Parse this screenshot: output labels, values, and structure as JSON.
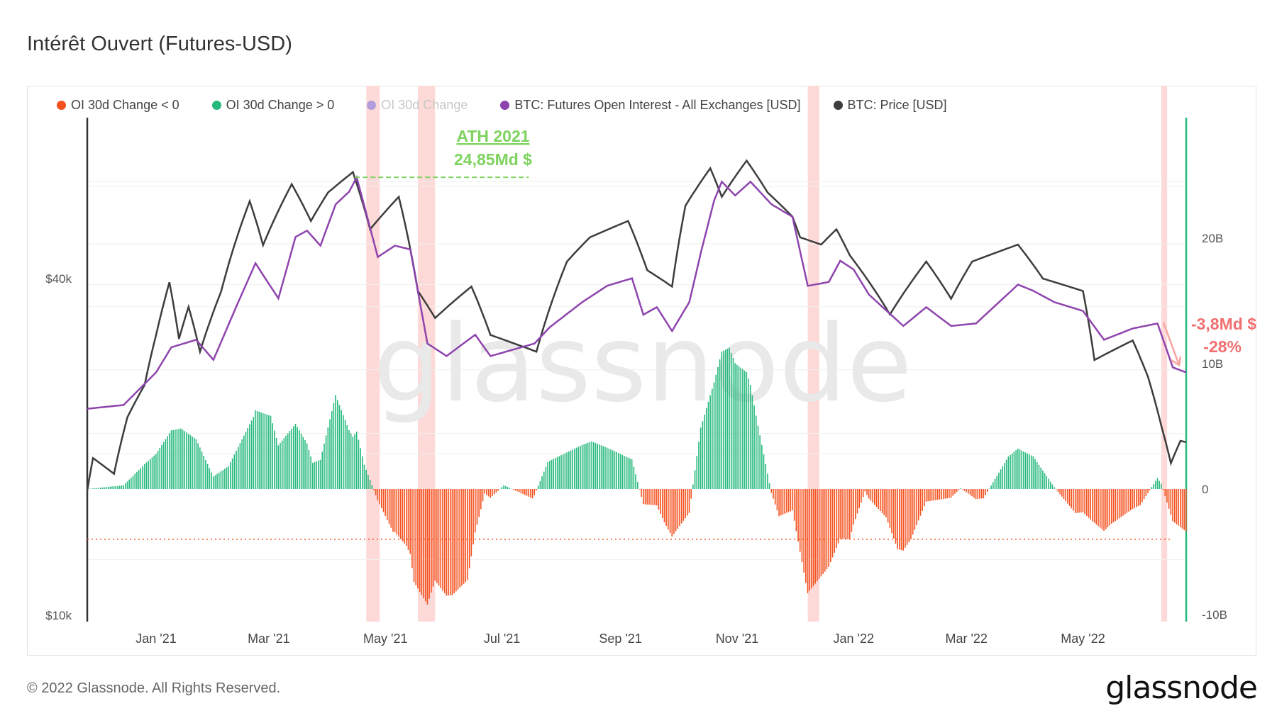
{
  "title": "Intérêt Ouvert (Futures-USD)",
  "footer": "© 2022 Glassnode. All Rights Reserved.",
  "logo": "glassnode",
  "watermark": "glassnode",
  "chart_data": {
    "type": "line",
    "title": "Intérêt Ouvert (Futures-USD)",
    "legend": [
      {
        "name": "OI 30d Change < 0",
        "color": "#f4511e",
        "muted": false
      },
      {
        "name": "OI 30d Change > 0",
        "color": "#26b97d",
        "muted": false
      },
      {
        "name": "OI 30d Change",
        "color": "#b39ddb",
        "muted": true
      },
      {
        "name": "BTC: Futures Open Interest - All Exchanges [USD]",
        "color": "#8e44ad",
        "muted": false
      },
      {
        "name": "BTC: Price [USD]",
        "color": "#3d3d3d",
        "muted": false
      }
    ],
    "legend_position": "top-left",
    "x_range": [
      "2020-11-26",
      "2022-06-24"
    ],
    "x_ticks": [
      {
        "date": "2021-01-01",
        "label": "Jan '21"
      },
      {
        "date": "2021-03-01",
        "label": "Mar '21"
      },
      {
        "date": "2021-05-01",
        "label": "May '21"
      },
      {
        "date": "2021-07-01",
        "label": "Jul '21"
      },
      {
        "date": "2021-09-01",
        "label": "Sep '21"
      },
      {
        "date": "2021-11-01",
        "label": "Nov '21"
      },
      {
        "date": "2022-01-01",
        "label": "Jan '22"
      },
      {
        "date": "2022-03-01",
        "label": "Mar '22"
      },
      {
        "date": "2022-05-01",
        "label": "May '22"
      }
    ],
    "left_axis": {
      "scale": "log",
      "ticks": [
        {
          "value": 40000,
          "label": "$40k"
        },
        {
          "value": 10000,
          "label": "$10k"
        }
      ]
    },
    "right_axis": {
      "scale": "linear",
      "range": [
        -10,
        30
      ],
      "unit": "B",
      "ticks": [
        {
          "value": 20,
          "label": "20B"
        },
        {
          "value": 10,
          "label": "10B"
        },
        {
          "value": 0,
          "label": "0"
        },
        {
          "value": -10,
          "label": "-10B"
        }
      ]
    },
    "price_usd": [
      [
        "2020-11-26",
        16700
      ],
      [
        "2020-11-29",
        19100
      ],
      [
        "2020-12-10",
        17900
      ],
      [
        "2020-12-17",
        22600
      ],
      [
        "2020-12-26",
        25800
      ],
      [
        "2021-01-01",
        31700
      ],
      [
        "2021-01-08",
        39400
      ],
      [
        "2021-01-13",
        31200
      ],
      [
        "2021-01-18",
        35600
      ],
      [
        "2021-01-24",
        29600
      ],
      [
        "2021-02-04",
        37900
      ],
      [
        "2021-02-19",
        55000
      ],
      [
        "2021-02-26",
        45900
      ],
      [
        "2021-03-13",
        59000
      ],
      [
        "2021-03-23",
        50700
      ],
      [
        "2021-04-01",
        57000
      ],
      [
        "2021-04-14",
        62000
      ],
      [
        "2021-04-23",
        49000
      ],
      [
        "2021-05-08",
        56000
      ],
      [
        "2021-05-18",
        38000
      ],
      [
        "2021-05-27",
        34000
      ],
      [
        "2021-06-15",
        38700
      ],
      [
        "2021-06-25",
        31700
      ],
      [
        "2021-07-19",
        29600
      ],
      [
        "2021-08-04",
        42900
      ],
      [
        "2021-08-16",
        47400
      ],
      [
        "2021-09-05",
        50700
      ],
      [
        "2021-09-15",
        41400
      ],
      [
        "2021-09-28",
        38700
      ],
      [
        "2021-10-05",
        54000
      ],
      [
        "2021-10-18",
        63000
      ],
      [
        "2021-10-24",
        56000
      ],
      [
        "2021-11-06",
        65000
      ],
      [
        "2021-11-17",
        57000
      ],
      [
        "2021-11-30",
        51600
      ],
      [
        "2021-12-04",
        47400
      ],
      [
        "2021-12-15",
        46000
      ],
      [
        "2021-12-23",
        49000
      ],
      [
        "2021-12-30",
        44000
      ],
      [
        "2022-01-20",
        34500
      ],
      [
        "2022-02-08",
        42900
      ],
      [
        "2022-02-21",
        36800
      ],
      [
        "2022-03-04",
        42900
      ],
      [
        "2022-03-28",
        46000
      ],
      [
        "2022-04-10",
        40000
      ],
      [
        "2022-05-01",
        38000
      ],
      [
        "2022-05-07",
        28600
      ],
      [
        "2022-05-27",
        31000
      ],
      [
        "2022-06-04",
        26700
      ],
      [
        "2022-06-11",
        21800
      ],
      [
        "2022-06-16",
        18700
      ],
      [
        "2022-06-21",
        20500
      ],
      [
        "2022-06-24",
        20400
      ]
    ],
    "open_interest_billion_usd": [
      [
        "2020-11-26",
        6.4
      ],
      [
        "2020-12-15",
        6.7
      ],
      [
        "2021-01-01",
        9.3
      ],
      [
        "2021-01-09",
        11.3
      ],
      [
        "2021-01-22",
        11.9
      ],
      [
        "2021-01-31",
        10.3
      ],
      [
        "2021-02-13",
        14.9
      ],
      [
        "2021-02-22",
        18.0
      ],
      [
        "2021-03-06",
        15.2
      ],
      [
        "2021-03-15",
        20.1
      ],
      [
        "2021-03-21",
        20.6
      ],
      [
        "2021-03-28",
        19.4
      ],
      [
        "2021-04-05",
        22.7
      ],
      [
        "2021-04-12",
        23.7
      ],
      [
        "2021-04-16",
        24.85
      ],
      [
        "2021-04-27",
        18.5
      ],
      [
        "2021-05-06",
        19.4
      ],
      [
        "2021-05-14",
        19.1
      ],
      [
        "2021-05-23",
        11.6
      ],
      [
        "2021-06-02",
        10.6
      ],
      [
        "2021-06-17",
        12.3
      ],
      [
        "2021-06-25",
        10.6
      ],
      [
        "2021-07-18",
        11.6
      ],
      [
        "2021-07-26",
        12.9
      ],
      [
        "2021-08-12",
        14.9
      ],
      [
        "2021-08-25",
        16.2
      ],
      [
        "2021-09-07",
        16.8
      ],
      [
        "2021-09-13",
        13.9
      ],
      [
        "2021-09-20",
        14.5
      ],
      [
        "2021-09-28",
        12.6
      ],
      [
        "2021-10-07",
        14.9
      ],
      [
        "2021-10-13",
        18.8
      ],
      [
        "2021-10-20",
        23.0
      ],
      [
        "2021-10-24",
        24.5
      ],
      [
        "2021-10-31",
        23.4
      ],
      [
        "2021-11-08",
        24.5
      ],
      [
        "2021-11-19",
        22.7
      ],
      [
        "2021-11-30",
        21.7
      ],
      [
        "2021-12-08",
        16.2
      ],
      [
        "2021-12-19",
        16.5
      ],
      [
        "2021-12-25",
        18.2
      ],
      [
        "2022-01-01",
        17.5
      ],
      [
        "2022-01-09",
        15.5
      ],
      [
        "2022-01-27",
        13.0
      ],
      [
        "2022-02-08",
        14.5
      ],
      [
        "2022-02-21",
        13.0
      ],
      [
        "2022-03-06",
        13.2
      ],
      [
        "2022-03-28",
        16.3
      ],
      [
        "2022-04-05",
        15.8
      ],
      [
        "2022-04-16",
        14.9
      ],
      [
        "2022-05-01",
        14.2
      ],
      [
        "2022-05-12",
        11.9
      ],
      [
        "2022-05-27",
        12.8
      ],
      [
        "2022-06-09",
        13.2
      ],
      [
        "2022-06-17",
        9.7
      ],
      [
        "2022-06-24",
        9.3
      ]
    ],
    "highlight_periods": [
      [
        "2021-04-21",
        "2021-04-28"
      ],
      [
        "2021-05-18",
        "2021-05-27"
      ],
      [
        "2021-12-08",
        "2021-12-14"
      ],
      [
        "2022-06-11",
        "2022-06-14"
      ]
    ],
    "threshold_line_billion_usd": -4,
    "annotations": {
      "ath_title": "ATH 2021",
      "ath_value": "24,85Md $",
      "ath_level_billion_usd": 24.85,
      "ath_line_range": [
        "2021-04-15",
        "2021-07-15"
      ],
      "drop_value": "-3,8Md $",
      "drop_percent": "-28%"
    },
    "colors": {
      "negative": "#f4511e",
      "positive": "#26b97d",
      "oi": "#8e44ad",
      "price": "#3d3d3d",
      "highlight": "#fdd9d7",
      "ath": "#7ed35f",
      "drop": "#f07070",
      "current_marker": "#26b97d"
    }
  }
}
